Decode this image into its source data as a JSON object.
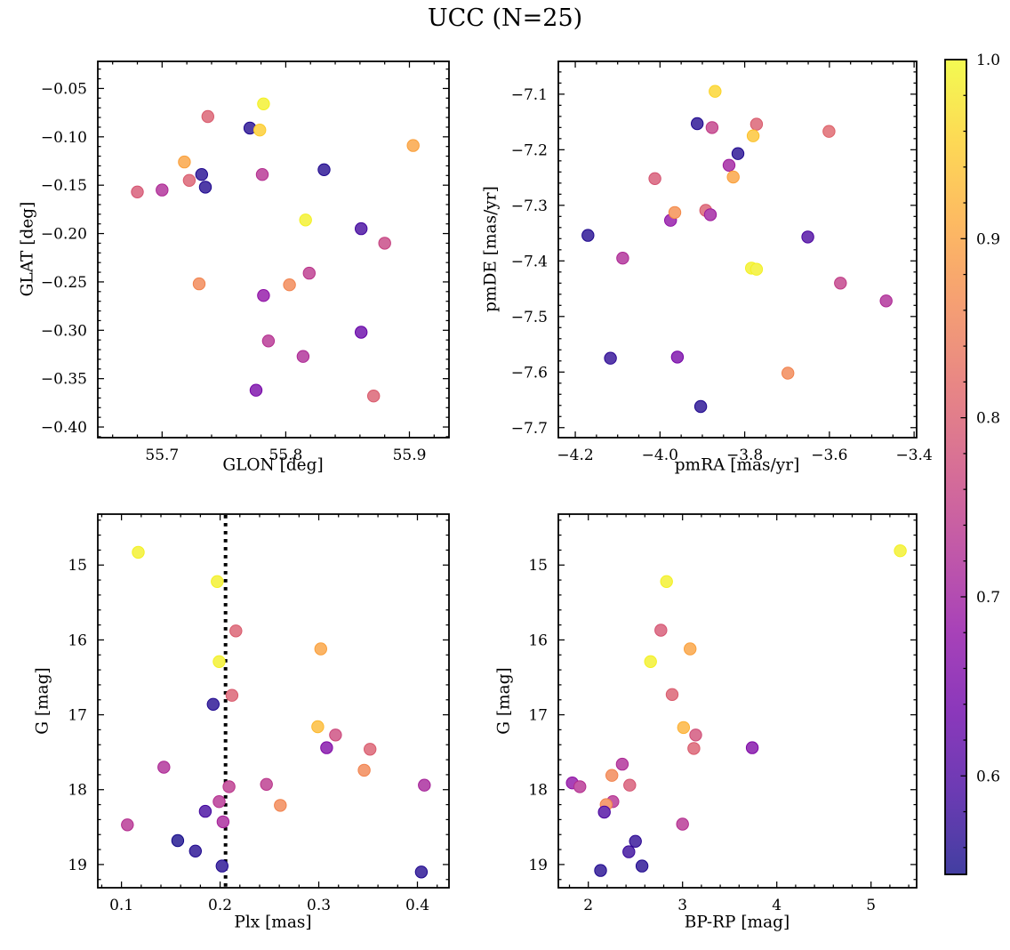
{
  "title": "UCC (N=25)",
  "n_members": 25,
  "style": {
    "colormap": "plasma",
    "plasma_stops": [
      "#0d0887",
      "#41049d",
      "#6a00a8",
      "#8f0da4",
      "#b12a90",
      "#cc4778",
      "#e16462",
      "#f2844b",
      "#fca636",
      "#fcce25",
      "#f0f921"
    ],
    "marker_alpha": 0.78,
    "marker_radius": 6.7,
    "frame_color": "#000000",
    "background_color": "#ffffff",
    "dotted_line_color": "#000000",
    "text_color": "#000000"
  },
  "colorbar": {
    "vmin": 0.545,
    "vmax": 1.0,
    "ticks": [
      1.0,
      0.9,
      0.8,
      0.7,
      0.6
    ],
    "tick_labels": [
      "1.0",
      "0.9",
      "0.8",
      "0.7",
      "0.6"
    ],
    "minor_step": 0.02
  },
  "chart_data": [
    {
      "type": "scatter",
      "name": "glon-glat",
      "xlabel": "GLON [deg]",
      "ylabel": "GLAT [deg]",
      "xlim": [
        55.648,
        55.932
      ],
      "ylim": [
        -0.411,
        -0.022
      ],
      "xticks": [
        55.7,
        55.8,
        55.9
      ],
      "xtick_labels": [
        "55.7",
        "55.8",
        "55.9"
      ],
      "x_minor_step": 0.02,
      "yticks": [
        -0.05,
        -0.1,
        -0.15,
        -0.2,
        -0.25,
        -0.3,
        -0.35,
        -0.4
      ],
      "ytick_labels": [
        "−0.05",
        "−0.10",
        "−0.15",
        "−0.20",
        "−0.25",
        "−0.30",
        "−0.35",
        "−0.40"
      ],
      "y_minor_step": 0.01,
      "points": [
        [
          55.782,
          -0.066,
          0.99
        ],
        [
          55.737,
          -0.079,
          0.8
        ],
        [
          55.771,
          -0.091,
          0.56
        ],
        [
          55.779,
          -0.093,
          0.95
        ],
        [
          55.903,
          -0.109,
          0.9
        ],
        [
          55.718,
          -0.126,
          0.9
        ],
        [
          55.781,
          -0.139,
          0.73
        ],
        [
          55.732,
          -0.139,
          0.56
        ],
        [
          55.831,
          -0.134,
          0.56
        ],
        [
          55.722,
          -0.145,
          0.8
        ],
        [
          55.735,
          -0.152,
          0.56
        ],
        [
          55.68,
          -0.157,
          0.79
        ],
        [
          55.7,
          -0.155,
          0.72
        ],
        [
          55.816,
          -0.186,
          0.99
        ],
        [
          55.861,
          -0.195,
          0.59
        ],
        [
          55.88,
          -0.21,
          0.76
        ],
        [
          55.819,
          -0.241,
          0.74
        ],
        [
          55.73,
          -0.252,
          0.86
        ],
        [
          55.803,
          -0.253,
          0.86
        ],
        [
          55.782,
          -0.264,
          0.68
        ],
        [
          55.786,
          -0.311,
          0.73
        ],
        [
          55.861,
          -0.302,
          0.63
        ],
        [
          55.814,
          -0.327,
          0.72
        ],
        [
          55.776,
          -0.362,
          0.65
        ],
        [
          55.871,
          -0.368,
          0.8
        ]
      ]
    },
    {
      "type": "scatter",
      "name": "pmra-pmde",
      "xlabel": "pmRA [mas/yr]",
      "ylabel": "pmDE [mas/yr]",
      "xlim": [
        -4.24,
        -3.394
      ],
      "ylim": [
        -7.718,
        -7.041
      ],
      "xticks": [
        -4.2,
        -4.0,
        -3.8,
        -3.6,
        -3.4
      ],
      "xtick_labels": [
        "−4.2",
        "−4.0",
        "−3.8",
        "−3.6",
        "−3.4"
      ],
      "x_minor_step": 0.05,
      "yticks": [
        -7.1,
        -7.2,
        -7.3,
        -7.4,
        -7.5,
        -7.6,
        -7.7
      ],
      "ytick_labels": [
        "−7.1",
        "−7.2",
        "−7.3",
        "−7.4",
        "−7.5",
        "−7.6",
        "−7.7"
      ],
      "y_minor_step": 0.02,
      "points": [
        [
          -3.87,
          -7.095,
          0.96
        ],
        [
          -3.912,
          -7.153,
          0.56
        ],
        [
          -3.877,
          -7.16,
          0.75
        ],
        [
          -3.772,
          -7.154,
          0.8
        ],
        [
          -3.78,
          -7.175,
          0.94
        ],
        [
          -3.601,
          -7.167,
          0.81
        ],
        [
          -3.816,
          -7.207,
          0.56
        ],
        [
          -3.837,
          -7.228,
          0.7
        ],
        [
          -3.827,
          -7.249,
          0.9
        ],
        [
          -4.012,
          -7.252,
          0.79
        ],
        [
          -3.975,
          -7.327,
          0.68
        ],
        [
          -3.965,
          -7.313,
          0.87
        ],
        [
          -3.892,
          -7.309,
          0.8
        ],
        [
          -3.881,
          -7.317,
          0.7
        ],
        [
          -4.17,
          -7.354,
          0.56
        ],
        [
          -3.651,
          -7.357,
          0.6
        ],
        [
          -4.088,
          -7.395,
          0.72
        ],
        [
          -3.784,
          -7.413,
          0.99
        ],
        [
          -3.772,
          -7.415,
          0.99
        ],
        [
          -3.574,
          -7.44,
          0.75
        ],
        [
          -3.466,
          -7.472,
          0.72
        ],
        [
          -4.117,
          -7.575,
          0.57
        ],
        [
          -3.959,
          -7.573,
          0.65
        ],
        [
          -3.698,
          -7.602,
          0.86
        ],
        [
          -3.904,
          -7.662,
          0.56
        ]
      ]
    },
    {
      "type": "scatter",
      "name": "plx-g",
      "xlabel": "Plx [mas]",
      "ylabel": "G [mag]",
      "xlim": [
        0.076,
        0.432
      ],
      "ylim": [
        19.31,
        14.32
      ],
      "xticks": [
        0.1,
        0.2,
        0.3,
        0.4
      ],
      "xtick_labels": [
        "0.1",
        "0.2",
        "0.3",
        "0.4"
      ],
      "x_minor_step": 0.02,
      "yticks": [
        15,
        16,
        17,
        18,
        19
      ],
      "ytick_labels": [
        "15",
        "16",
        "17",
        "18",
        "19"
      ],
      "y_minor_step": 0.2,
      "vline_x": 0.2055,
      "points": [
        [
          0.117,
          14.83,
          0.99
        ],
        [
          0.197,
          15.22,
          0.99
        ],
        [
          0.216,
          15.88,
          0.8
        ],
        [
          0.302,
          16.12,
          0.9
        ],
        [
          0.199,
          16.29,
          0.99
        ],
        [
          0.212,
          16.74,
          0.8
        ],
        [
          0.193,
          16.86,
          0.56
        ],
        [
          0.299,
          17.16,
          0.93
        ],
        [
          0.317,
          17.27,
          0.77
        ],
        [
          0.308,
          17.44,
          0.66
        ],
        [
          0.352,
          17.46,
          0.8
        ],
        [
          0.143,
          17.7,
          0.72
        ],
        [
          0.346,
          17.74,
          0.86
        ],
        [
          0.247,
          17.93,
          0.74
        ],
        [
          0.209,
          17.96,
          0.74
        ],
        [
          0.407,
          17.94,
          0.71
        ],
        [
          0.199,
          18.16,
          0.73
        ],
        [
          0.261,
          18.21,
          0.86
        ],
        [
          0.185,
          18.29,
          0.59
        ],
        [
          0.203,
          18.43,
          0.71
        ],
        [
          0.106,
          18.47,
          0.73
        ],
        [
          0.157,
          18.68,
          0.55
        ],
        [
          0.175,
          18.82,
          0.56
        ],
        [
          0.202,
          19.02,
          0.56
        ],
        [
          0.404,
          19.1,
          0.56
        ]
      ]
    },
    {
      "type": "scatter",
      "name": "bprp-g",
      "xlabel": "BP-RP [mag]",
      "ylabel": "G [mag]",
      "xlim": [
        1.682,
        5.484
      ],
      "ylim": [
        19.31,
        14.32
      ],
      "xticks": [
        2,
        3,
        4,
        5
      ],
      "xtick_labels": [
        "2",
        "3",
        "4",
        "5"
      ],
      "x_minor_step": 0.2,
      "yticks": [
        15,
        16,
        17,
        18,
        19
      ],
      "ytick_labels": [
        "15",
        "16",
        "17",
        "18",
        "19"
      ],
      "y_minor_step": 0.2,
      "points": [
        [
          5.31,
          14.81,
          0.99
        ],
        [
          2.83,
          15.22,
          0.99
        ],
        [
          2.77,
          15.87,
          0.79
        ],
        [
          3.08,
          16.12,
          0.9
        ],
        [
          2.66,
          16.29,
          0.99
        ],
        [
          2.89,
          16.73,
          0.8
        ],
        [
          3.01,
          17.17,
          0.92
        ],
        [
          3.14,
          17.27,
          0.78
        ],
        [
          3.12,
          17.45,
          0.8
        ],
        [
          3.74,
          17.44,
          0.66
        ],
        [
          2.36,
          17.66,
          0.72
        ],
        [
          2.25,
          17.81,
          0.86
        ],
        [
          1.83,
          17.91,
          0.68
        ],
        [
          1.91,
          17.96,
          0.73
        ],
        [
          2.44,
          17.94,
          0.79
        ],
        [
          2.26,
          18.16,
          0.73
        ],
        [
          2.19,
          18.2,
          0.86
        ],
        [
          2.17,
          18.3,
          0.6
        ],
        [
          3.0,
          18.46,
          0.73
        ],
        [
          2.5,
          18.69,
          0.57
        ],
        [
          2.43,
          18.83,
          0.58
        ],
        [
          2.57,
          19.02,
          0.56
        ],
        [
          2.13,
          19.08,
          0.56
        ]
      ]
    }
  ]
}
